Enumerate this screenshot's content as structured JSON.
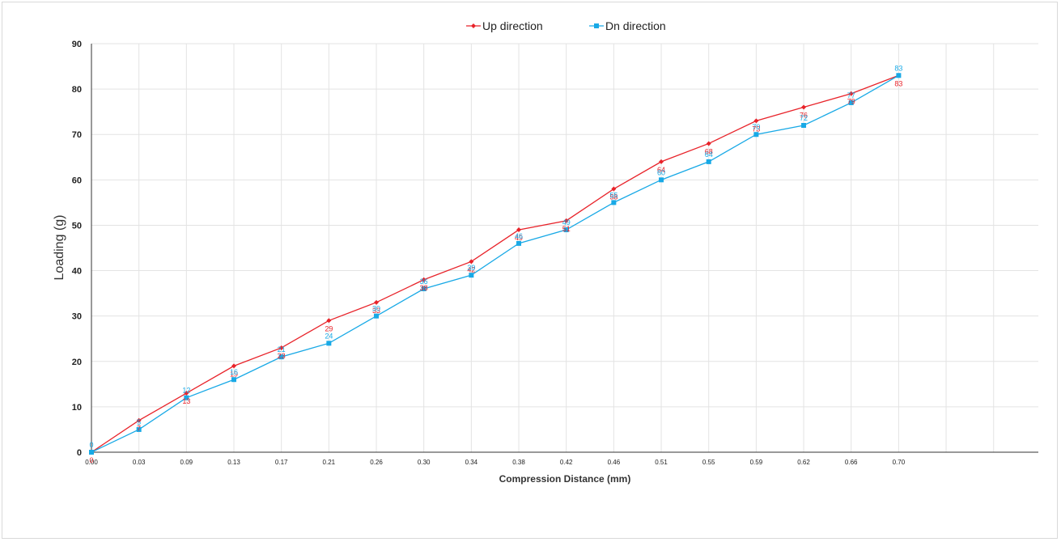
{
  "chart_data": {
    "type": "line",
    "xlabel": "Compression Distance (mm)",
    "ylabel": "Loading (g)",
    "categories": [
      "0.00",
      "0.03",
      "0.09",
      "0.13",
      "0.17",
      "0.21",
      "0.26",
      "0.30",
      "0.34",
      "0.38",
      "0.42",
      "0.46",
      "0.51",
      "0.55",
      "0.59",
      "0.62",
      "0.66",
      "0.70"
    ],
    "ylim": [
      0,
      90
    ],
    "yticks": [
      0,
      10,
      20,
      30,
      40,
      50,
      60,
      70,
      80,
      90
    ],
    "grid": true,
    "legend": "top-center",
    "series": [
      {
        "name": "Up direction",
        "color": "#e8232a",
        "marker": "diamond",
        "values": [
          0,
          7,
          13,
          19,
          23,
          29,
          33,
          38,
          42,
          49,
          51,
          58,
          64,
          68,
          73,
          76,
          79,
          83
        ]
      },
      {
        "name": "Dn direction",
        "color": "#18a9e6",
        "marker": "square",
        "values": [
          0,
          5,
          12,
          16,
          21,
          24,
          30,
          36,
          39,
          46,
          49,
          55,
          60,
          64,
          70,
          72,
          77,
          83
        ]
      }
    ]
  }
}
